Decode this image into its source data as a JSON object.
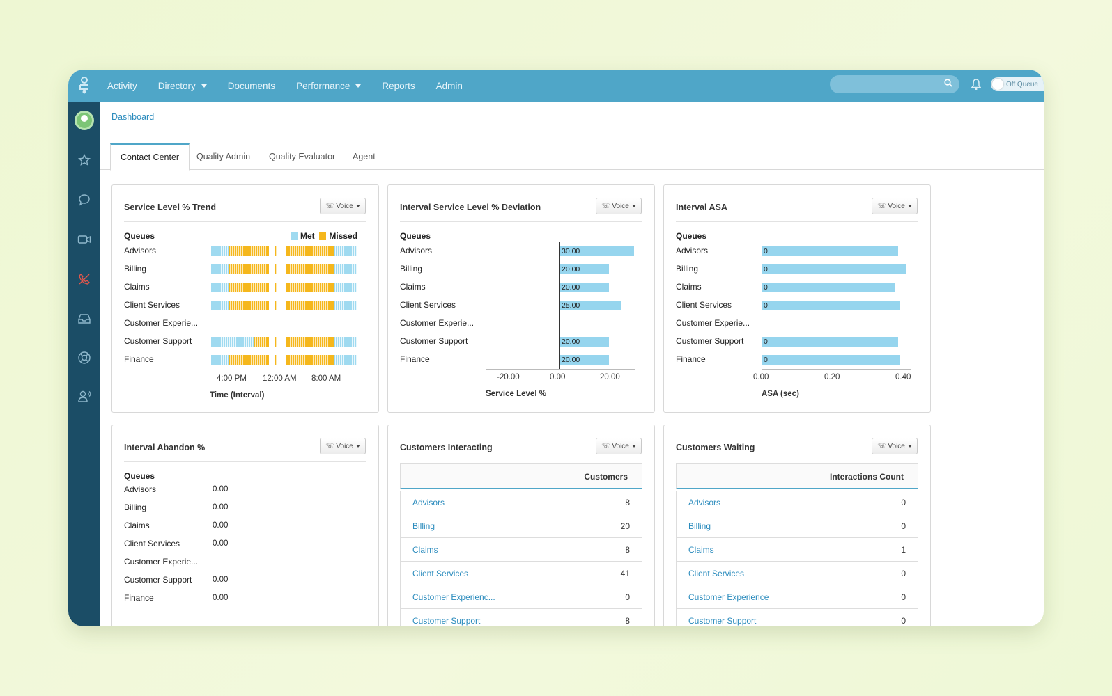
{
  "nav": {
    "items": [
      {
        "label": "Activity",
        "dropdown": false
      },
      {
        "label": "Directory",
        "dropdown": true
      },
      {
        "label": "Documents",
        "dropdown": false
      },
      {
        "label": "Performance",
        "dropdown": true
      },
      {
        "label": "Reports",
        "dropdown": false
      },
      {
        "label": "Admin",
        "dropdown": false
      }
    ],
    "search_placeholder": "",
    "queue_toggle_label": "Off Queue"
  },
  "sidebar": {
    "icons": [
      "avatar",
      "star-icon",
      "chat-icon",
      "video-icon",
      "phone-off-icon",
      "inbox-icon",
      "lifebuoy-icon",
      "agent-voice-icon"
    ]
  },
  "breadcrumb": "Dashboard",
  "tabs": [
    {
      "label": "Contact Center",
      "active": true
    },
    {
      "label": "Quality Admin",
      "active": false
    },
    {
      "label": "Quality Evaluator",
      "active": false
    },
    {
      "label": "Agent",
      "active": false
    }
  ],
  "colors": {
    "accent": "#4fa6c8",
    "sidebar": "#1b4d66",
    "bar": "#96d5ee",
    "met": "#9fdaf0",
    "missed": "#f5b71c",
    "link": "#2a8bbd"
  },
  "voice_label": "Voice",
  "queues_label": "Queues",
  "cards": {
    "sl_trend": {
      "title": "Service Level % Trend",
      "legend": {
        "met": "Met",
        "missed": "Missed"
      },
      "xlabel": "Time (Interval)",
      "xticks": [
        "4:00 PM",
        "12:00 AM",
        "8:00 AM"
      ]
    },
    "sl_dev": {
      "title": "Interval Service Level % Deviation",
      "xlabel": "Service Level %",
      "xticks": [
        "-20.00",
        "0.00",
        "20.00"
      ]
    },
    "asa": {
      "title": "Interval ASA",
      "xlabel": "ASA (sec)",
      "xticks": [
        "0.00",
        "0.20",
        "0.40"
      ]
    },
    "abandon": {
      "title": "Interval Abandon %"
    },
    "interacting": {
      "title": "Customers Interacting",
      "column": "Customers",
      "rows": [
        {
          "name": "Advisors",
          "value": "8"
        },
        {
          "name": "Billing",
          "value": "20"
        },
        {
          "name": "Claims",
          "value": "8"
        },
        {
          "name": "Client Services",
          "value": "41"
        },
        {
          "name": "Customer Experienc...",
          "value": "0"
        },
        {
          "name": "Customer Support",
          "value": "8"
        }
      ]
    },
    "waiting": {
      "title": "Customers Waiting",
      "column": "Interactions Count",
      "rows": [
        {
          "name": "Advisors",
          "value": "0"
        },
        {
          "name": "Billing",
          "value": "0"
        },
        {
          "name": "Claims",
          "value": "1"
        },
        {
          "name": "Client Services",
          "value": "0"
        },
        {
          "name": "Customer Experience",
          "value": "0"
        },
        {
          "name": "Customer Support",
          "value": "0"
        }
      ]
    }
  },
  "chart_data": [
    {
      "type": "bar",
      "title": "Service Level % Trend",
      "xlabel": "Time (Interval)",
      "categories": [
        "Advisors",
        "Billing",
        "Claims",
        "Client Services",
        "Customer Experie...",
        "Customer Support",
        "Finance"
      ],
      "series": [
        {
          "name": "Met"
        },
        {
          "name": "Missed"
        }
      ],
      "segments": [
        [
          [
            "met",
            0.12
          ],
          [
            "missed",
            0.27
          ],
          [
            "gap",
            0.04
          ],
          [
            "missed",
            0.02
          ],
          [
            "gap",
            0.06
          ],
          [
            "missed",
            0.32
          ],
          [
            "met",
            0.16
          ]
        ],
        [
          [
            "met",
            0.12
          ],
          [
            "missed",
            0.27
          ],
          [
            "gap",
            0.04
          ],
          [
            "missed",
            0.02
          ],
          [
            "gap",
            0.06
          ],
          [
            "missed",
            0.32
          ],
          [
            "met",
            0.16
          ]
        ],
        [
          [
            "met",
            0.12
          ],
          [
            "missed",
            0.27
          ],
          [
            "gap",
            0.04
          ],
          [
            "missed",
            0.02
          ],
          [
            "gap",
            0.06
          ],
          [
            "missed",
            0.32
          ],
          [
            "met",
            0.16
          ]
        ],
        [
          [
            "met",
            0.12
          ],
          [
            "missed",
            0.27
          ],
          [
            "gap",
            0.04
          ],
          [
            "missed",
            0.02
          ],
          [
            "gap",
            0.06
          ],
          [
            "missed",
            0.32
          ],
          [
            "met",
            0.16
          ]
        ],
        [],
        [
          [
            "met",
            0.29
          ],
          [
            "missed",
            0.1
          ],
          [
            "gap",
            0.04
          ],
          [
            "missed",
            0.02
          ],
          [
            "gap",
            0.06
          ],
          [
            "missed",
            0.32
          ],
          [
            "met",
            0.16
          ]
        ],
        [
          [
            "met",
            0.12
          ],
          [
            "missed",
            0.27
          ],
          [
            "gap",
            0.04
          ],
          [
            "missed",
            0.02
          ],
          [
            "gap",
            0.06
          ],
          [
            "missed",
            0.32
          ],
          [
            "met",
            0.16
          ]
        ]
      ]
    },
    {
      "type": "bar",
      "title": "Interval Service Level % Deviation",
      "xlabel": "Service Level %",
      "categories": [
        "Advisors",
        "Billing",
        "Claims",
        "Client Services",
        "Customer Experie...",
        "Customer Support",
        "Finance"
      ],
      "values": [
        30,
        20,
        20,
        25,
        null,
        20,
        20
      ],
      "labels": [
        "30.00",
        "20.00",
        "20.00",
        "25.00",
        "",
        "20.00",
        "20.00"
      ],
      "xlim": [
        -30,
        30
      ]
    },
    {
      "type": "bar",
      "title": "Interval ASA",
      "xlabel": "ASA (sec)",
      "categories": [
        "Advisors",
        "Billing",
        "Claims",
        "Client Services",
        "Customer Experie...",
        "Customer Support",
        "Finance"
      ],
      "values": [
        0,
        0,
        0,
        0,
        null,
        0,
        0
      ],
      "labels": [
        "0",
        "0",
        "0",
        "0",
        "",
        "0",
        "0"
      ],
      "xlim": [
        0,
        0.4
      ]
    },
    {
      "type": "table",
      "title": "Interval Abandon %",
      "categories": [
        "Advisors",
        "Billing",
        "Claims",
        "Client Services",
        "Customer Experie...",
        "Customer Support",
        "Finance"
      ],
      "labels": [
        "0.00",
        "0.00",
        "0.00",
        "0.00",
        "",
        "0.00",
        "0.00"
      ]
    }
  ]
}
